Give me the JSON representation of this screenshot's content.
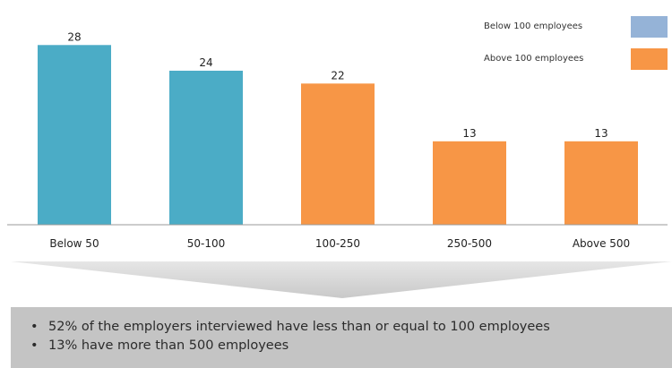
{
  "chart_data": {
    "type": "bar",
    "categories": [
      "Below 50",
      "50-100",
      "100-250",
      "250-500",
      "Above 500"
    ],
    "values": [
      28,
      24,
      22,
      13,
      13
    ],
    "groups": [
      "Below 100 employees",
      "Below 100 employees",
      "Above 100 employees",
      "Above 100 employees",
      "Above 100 employees"
    ],
    "ylim": [
      0,
      30
    ],
    "grid": false,
    "legend_placement": "top-right"
  },
  "legend": [
    {
      "label": "Below 100 employees",
      "color": "#4bacc6"
    },
    {
      "label": "Above 100 employees",
      "color": "#f79646"
    }
  ],
  "legend_swatch_colors": [
    "#95b3d7",
    "#f79646"
  ],
  "notes": {
    "bullet": "•",
    "items": [
      "52% of the employers interviewed have less than or equal to 100 employees",
      "13% have more than 500 employees"
    ],
    "background": "#c4c4c4"
  }
}
